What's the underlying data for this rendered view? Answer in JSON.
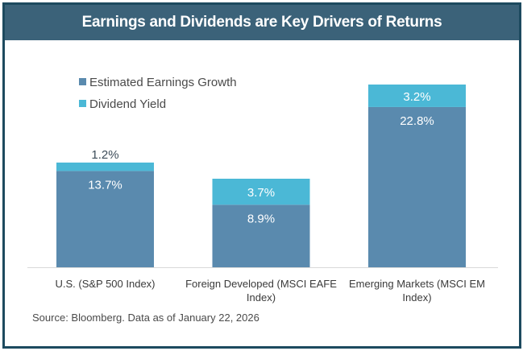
{
  "header": {
    "title": "Earnings and Dividends are Key Drivers of Returns"
  },
  "colors": {
    "earnings": "#5a8aae",
    "dividend": "#4bb8d6",
    "header_bg": "#3b6279",
    "border": "#1d4a5f"
  },
  "chart_data": {
    "type": "bar",
    "stacked": true,
    "title": "Earnings and Dividends are Key Drivers of Returns",
    "categories": [
      [
        "U.S. (S&P 500 Index)"
      ],
      [
        "Foreign Developed (MSCI EAFE",
        "Index)"
      ],
      [
        "Emerging Markets (MSCI EM",
        "Index)"
      ]
    ],
    "series": [
      {
        "name": "Estimated Earnings Growth",
        "values": [
          13.7,
          8.9,
          22.8
        ],
        "labels": [
          "13.7%",
          "8.9%",
          "22.8%"
        ]
      },
      {
        "name": "Dividend Yield",
        "values": [
          1.2,
          3.7,
          3.2
        ],
        "labels": [
          "1.2%",
          "3.7%",
          "3.2%"
        ]
      }
    ],
    "legend_position": "top-left",
    "grid": false,
    "ylim": [
      0,
      26
    ]
  },
  "footer": {
    "source": "Source: Bloomberg. Data as of January 22, 2026"
  }
}
